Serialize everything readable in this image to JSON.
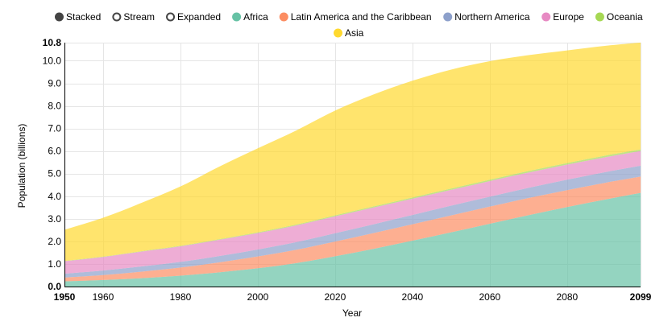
{
  "controls": [
    {
      "label": "Stacked",
      "selected": true
    },
    {
      "label": "Stream",
      "selected": false
    },
    {
      "label": "Expanded",
      "selected": false
    }
  ],
  "chart_data": {
    "type": "area",
    "stacked": true,
    "xlabel": "Year",
    "ylabel": "Population (billions)",
    "xlim": [
      1950,
      2099
    ],
    "ylim": [
      0,
      10.8
    ],
    "x_ticks": [
      "1950",
      "1960",
      "1980",
      "2000",
      "2020",
      "2040",
      "2060",
      "2080",
      "2099"
    ],
    "y_ticks": [
      "0.0",
      "1.0",
      "2.0",
      "3.0",
      "4.0",
      "5.0",
      "6.0",
      "7.0",
      "8.0",
      "9.0",
      "10.0",
      "10.8"
    ],
    "legend_position": "top",
    "grid": true,
    "x": [
      1950,
      1960,
      1970,
      1980,
      1990,
      2000,
      2010,
      2020,
      2030,
      2040,
      2050,
      2060,
      2070,
      2080,
      2090,
      2099
    ],
    "series": [
      {
        "name": "Africa",
        "color": "#66c2a5",
        "values": [
          0.23,
          0.29,
          0.37,
          0.48,
          0.63,
          0.81,
          1.04,
          1.34,
          1.67,
          2.03,
          2.4,
          2.78,
          3.16,
          3.52,
          3.86,
          4.15
        ]
      },
      {
        "name": "Latin America and the Caribbean",
        "color": "#fc8d62",
        "values": [
          0.17,
          0.22,
          0.29,
          0.36,
          0.44,
          0.52,
          0.59,
          0.65,
          0.7,
          0.73,
          0.75,
          0.76,
          0.76,
          0.75,
          0.74,
          0.72
        ]
      },
      {
        "name": "Northern America",
        "color": "#8da0cb",
        "values": [
          0.17,
          0.2,
          0.23,
          0.25,
          0.28,
          0.31,
          0.34,
          0.37,
          0.39,
          0.41,
          0.43,
          0.44,
          0.45,
          0.46,
          0.47,
          0.48
        ]
      },
      {
        "name": "Europe",
        "color": "#e78ac3",
        "values": [
          0.55,
          0.6,
          0.66,
          0.69,
          0.72,
          0.73,
          0.74,
          0.75,
          0.74,
          0.72,
          0.7,
          0.69,
          0.68,
          0.67,
          0.66,
          0.65
        ]
      },
      {
        "name": "Oceania",
        "color": "#a6d854",
        "values": [
          0.013,
          0.016,
          0.02,
          0.023,
          0.027,
          0.031,
          0.037,
          0.043,
          0.049,
          0.054,
          0.058,
          0.062,
          0.066,
          0.069,
          0.072,
          0.075
        ]
      },
      {
        "name": "Asia",
        "color": "#ffd92f",
        "values": [
          1.38,
          1.72,
          2.14,
          2.63,
          3.21,
          3.72,
          4.17,
          4.64,
          4.96,
          5.17,
          5.27,
          5.25,
          5.13,
          4.99,
          4.86,
          4.73
        ]
      }
    ]
  }
}
